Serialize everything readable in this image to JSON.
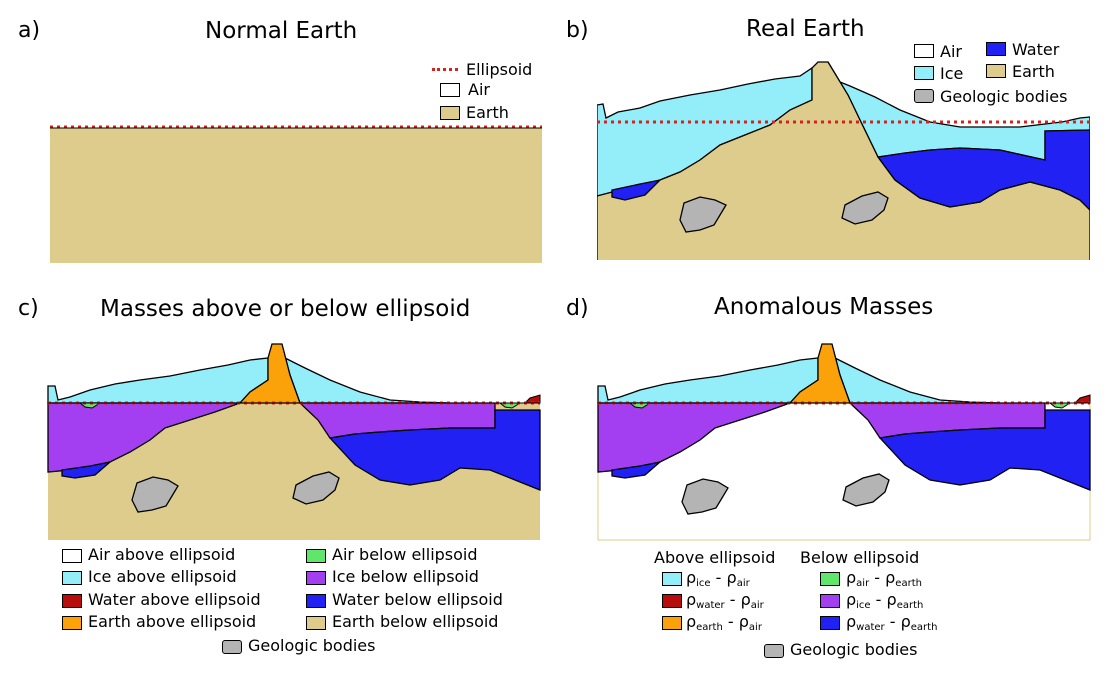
{
  "colors": {
    "air": "#ffffff",
    "ice": "#94eefa",
    "water": "#2121f3",
    "earth": "#ddcc8b",
    "geologic": "#b4b4b4",
    "ellipsoid": "#d6221e",
    "air_below": "#5fe66b",
    "ice_below": "#a33ff0",
    "water_above": "#b80d0d",
    "earth_above": "#fba10a"
  },
  "panels": {
    "a": {
      "letter": "a)",
      "title": "Normal Earth",
      "legend": {
        "ellipsoid": "Ellipsoid",
        "air": "Air",
        "earth": "Earth"
      }
    },
    "b": {
      "letter": "b)",
      "title": "Real Earth",
      "legend": {
        "air": "Air",
        "water": "Water",
        "ice": "Ice",
        "earth": "Earth",
        "geologic": "Geologic bodies"
      }
    },
    "c": {
      "letter": "c)",
      "title": "Masses above or below ellipsoid",
      "legend": {
        "air_above": "Air above ellipsoid",
        "ice_above": "Ice above ellipsoid",
        "water_above": "Water above ellipsoid",
        "earth_above": "Earth above ellipsoid",
        "air_below": "Air below ellipsoid",
        "ice_below": "Ice below ellipsoid",
        "water_below": "Water below ellipsoid",
        "earth_below": "Earth below ellipsoid",
        "geologic": "Geologic bodies"
      }
    },
    "d": {
      "letter": "d)",
      "title": "Anomalous Masses",
      "legend": {
        "above_header": "Above ellipsoid",
        "below_header": "Below ellipsoid",
        "rho": "ρ",
        "minus": " - ",
        "ice": "ice",
        "air": "air",
        "water": "water",
        "earth": "earth",
        "geologic": "Geologic bodies"
      }
    }
  }
}
